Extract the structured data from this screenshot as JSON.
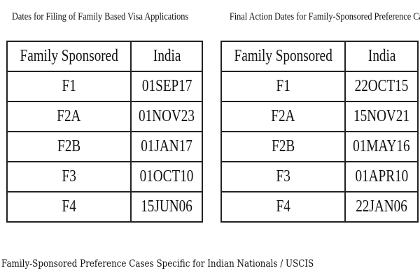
{
  "tables": [
    {
      "title": "Dates for Filing of Family Based Visa Applications",
      "headers": [
        "Family Sponsored",
        "India"
      ],
      "rows": [
        [
          "F1",
          "01SEP17"
        ],
        [
          "F2A",
          "01NOV23"
        ],
        [
          "F2B",
          "01JAN17"
        ],
        [
          "F3",
          "01OCT10"
        ],
        [
          "F4",
          "15JUN06"
        ]
      ]
    },
    {
      "title": "Final Action Dates for Family-Sponsored Preference Cases",
      "headers": [
        "Family Sponsored",
        "India"
      ],
      "rows": [
        [
          "F1",
          "22OCT15"
        ],
        [
          "F2A",
          "15NOV21"
        ],
        [
          "F2B",
          "01MAY16"
        ],
        [
          "F3",
          "01APR10"
        ],
        [
          "F4",
          "22JAN06"
        ]
      ]
    }
  ],
  "caption": "Family-Sponsored Preference Cases Specific for Indian Nationals / USCIS"
}
